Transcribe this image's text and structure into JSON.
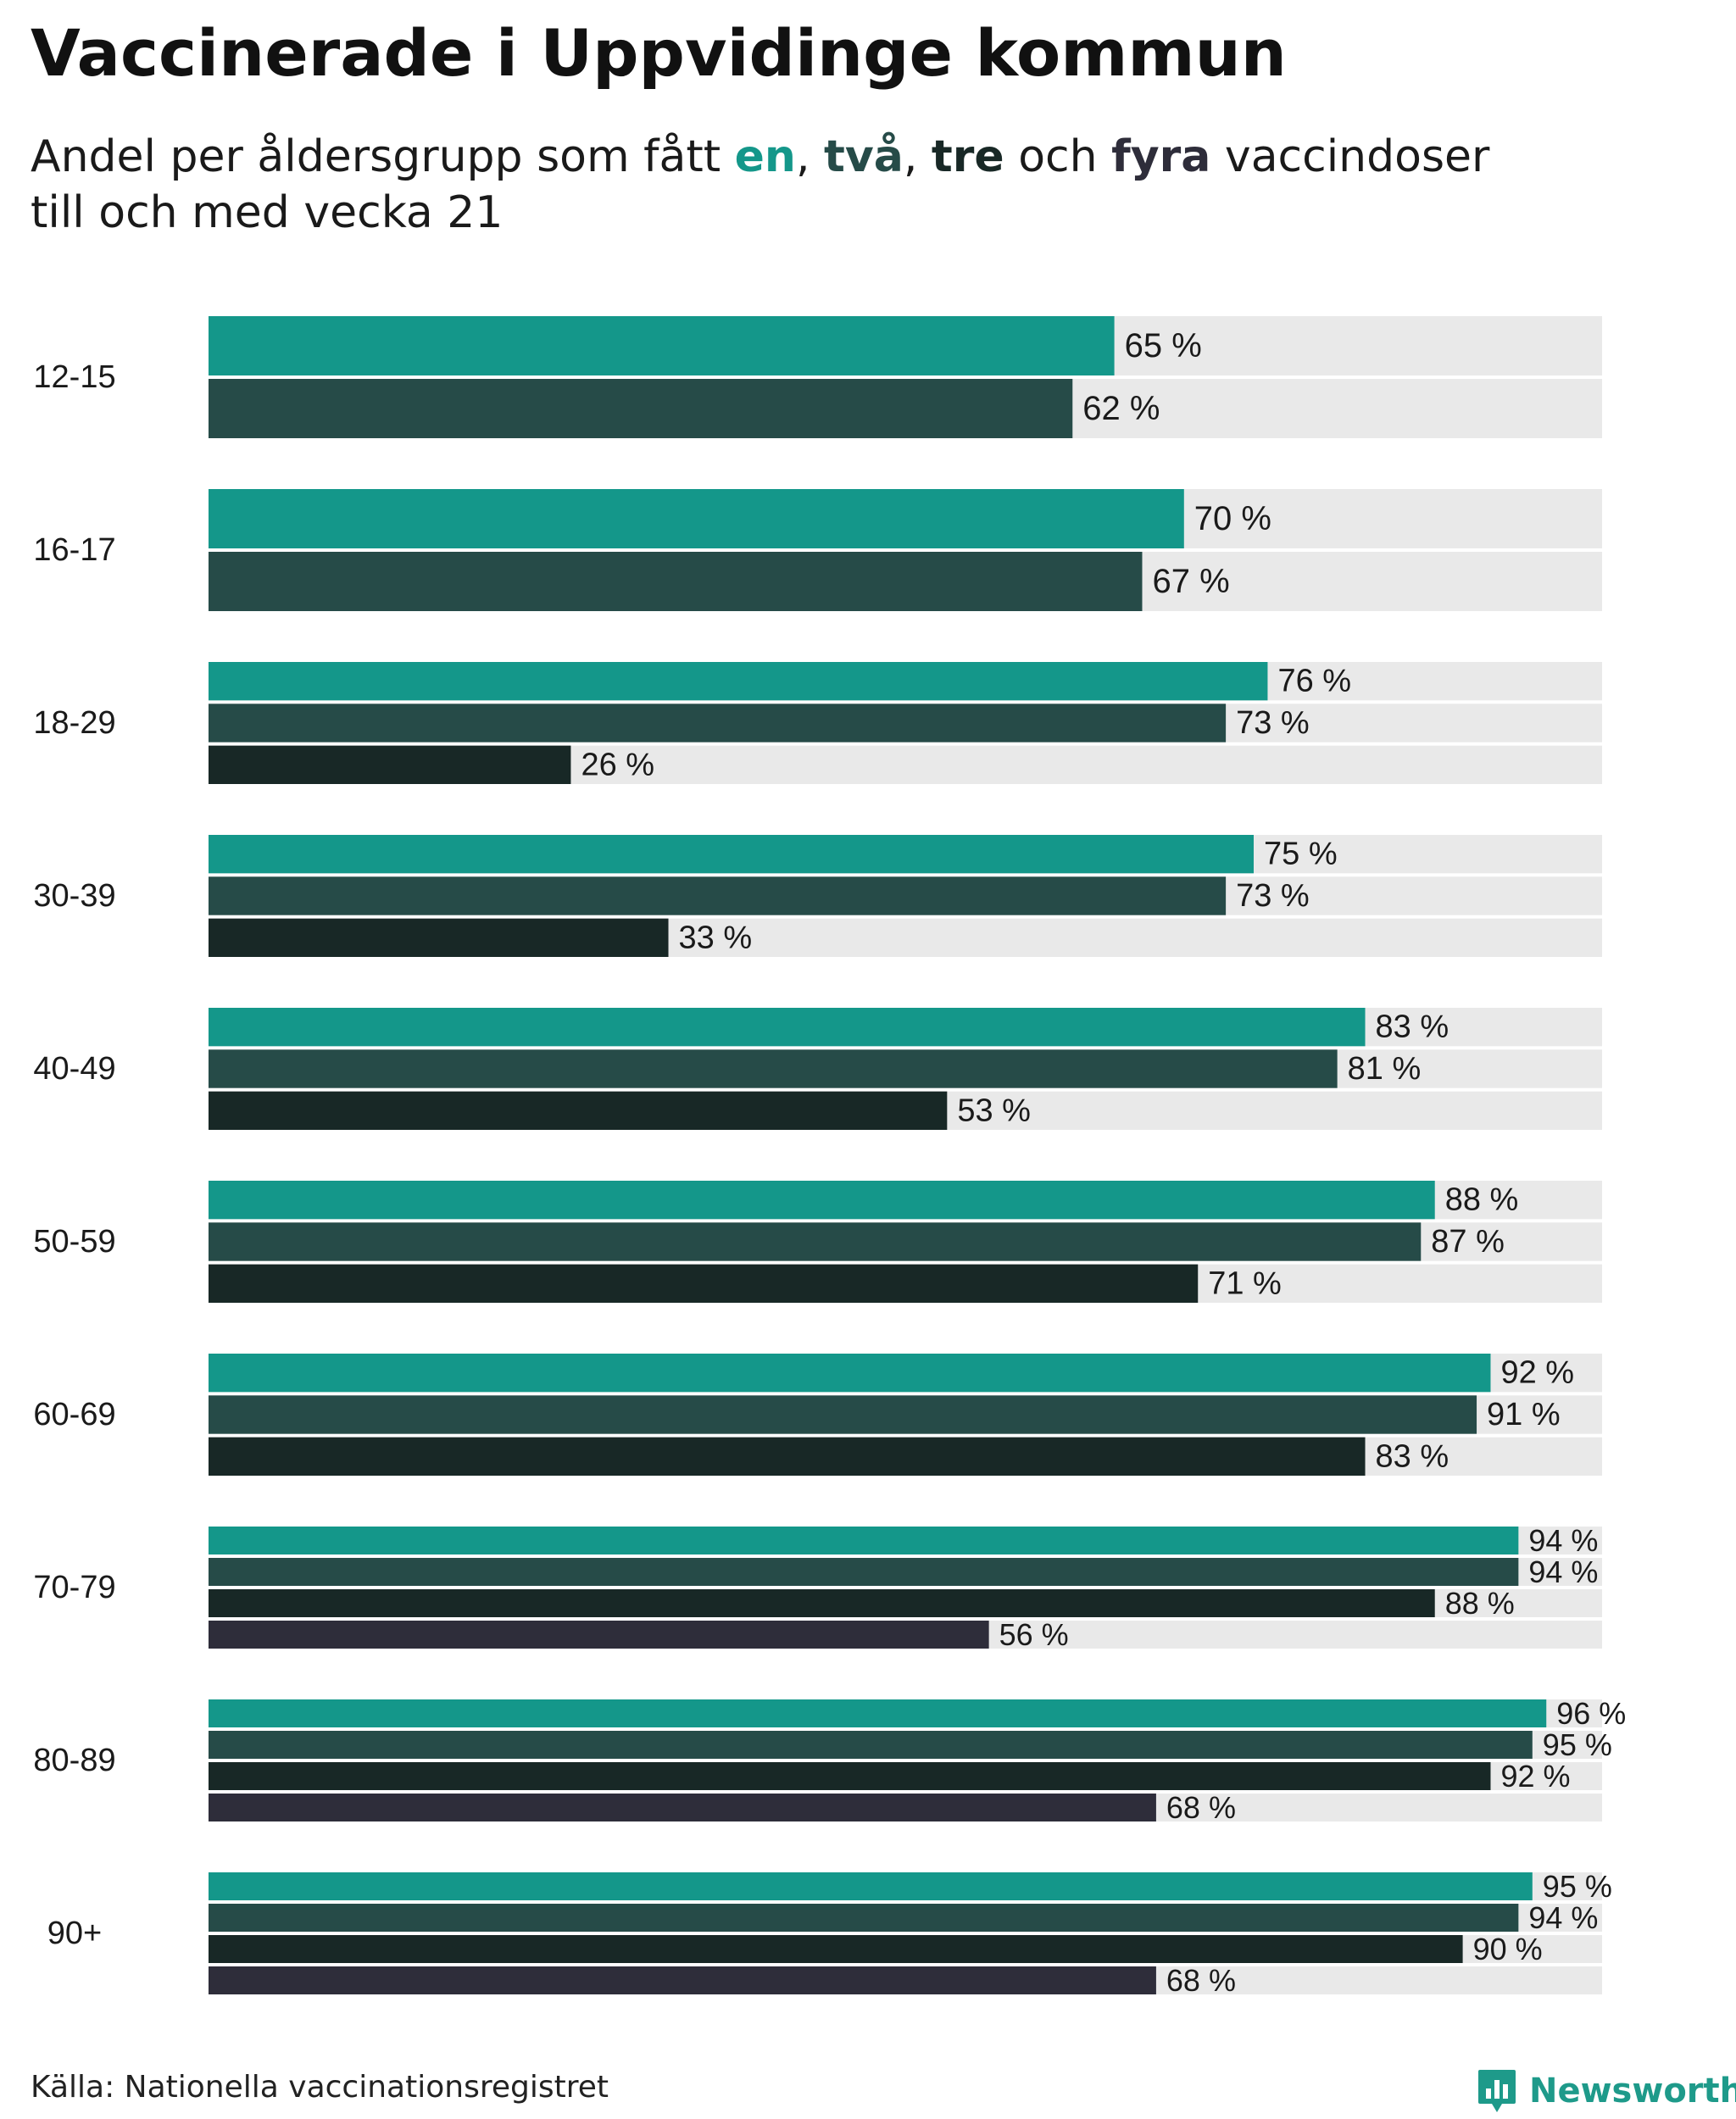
{
  "header": {
    "title": "Vaccinerade i Uppvidinge kommun",
    "subtitle_pre": "Andel per åldersgrupp som fått ",
    "subtitle_en": "en",
    "subtitle_sep1": ", ",
    "subtitle_tva": "två",
    "subtitle_sep2": ", ",
    "subtitle_tre": "tre",
    "subtitle_och": " och ",
    "subtitle_fyra": "fyra",
    "subtitle_post": " vaccindoser",
    "subtitle_line2": "till och med vecka 21"
  },
  "footer": {
    "source": "Källa: Nationella vaccinationsregistret",
    "brand": "Newsworthy"
  },
  "colors": {
    "dose1": "#14978a",
    "dose2": "#264b48",
    "dose3": "#182826",
    "dose4": "#2e2d3a",
    "track": "#e9e9e9"
  },
  "chart_data": {
    "type": "bar",
    "orientation": "horizontal",
    "xlim": [
      0,
      100
    ],
    "value_suffix": " %",
    "categories": [
      "12-15",
      "16-17",
      "18-29",
      "30-39",
      "40-49",
      "50-59",
      "60-69",
      "70-79",
      "80-89",
      "90+"
    ],
    "series": [
      {
        "name": "en",
        "values": [
          65,
          70,
          76,
          75,
          83,
          88,
          92,
          94,
          96,
          95
        ]
      },
      {
        "name": "två",
        "values": [
          62,
          67,
          73,
          73,
          81,
          87,
          91,
          94,
          95,
          94
        ]
      },
      {
        "name": "tre",
        "values": [
          null,
          null,
          26,
          33,
          53,
          71,
          83,
          88,
          92,
          90
        ]
      },
      {
        "name": "fyra",
        "values": [
          null,
          null,
          null,
          null,
          null,
          null,
          null,
          56,
          68,
          68
        ]
      }
    ]
  }
}
